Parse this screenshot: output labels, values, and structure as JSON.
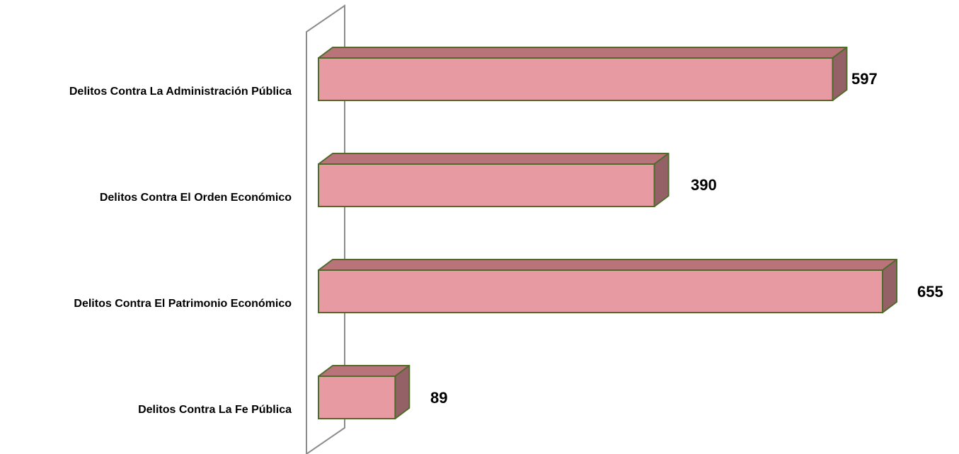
{
  "chart_data": {
    "type": "bar",
    "orientation": "horizontal",
    "style": "3d",
    "categories": [
      "Delitos Contra La Administración Pública",
      "Delitos Contra El Orden Económico",
      "Delitos Contra El Patrimonio Económico",
      "Delitos Contra La Fe Pública"
    ],
    "values": [
      597,
      390,
      655,
      89
    ],
    "data_labels": [
      "597",
      "390",
      "655",
      "89"
    ],
    "xlim": [
      0,
      655
    ],
    "grid": false,
    "legend": "none",
    "colors": {
      "bar_front": "#E89AA2",
      "bar_top": "#B87478",
      "bar_side": "#946266",
      "bar_stroke": "#4F6B2C",
      "wall": "#8C8C8C"
    }
  }
}
